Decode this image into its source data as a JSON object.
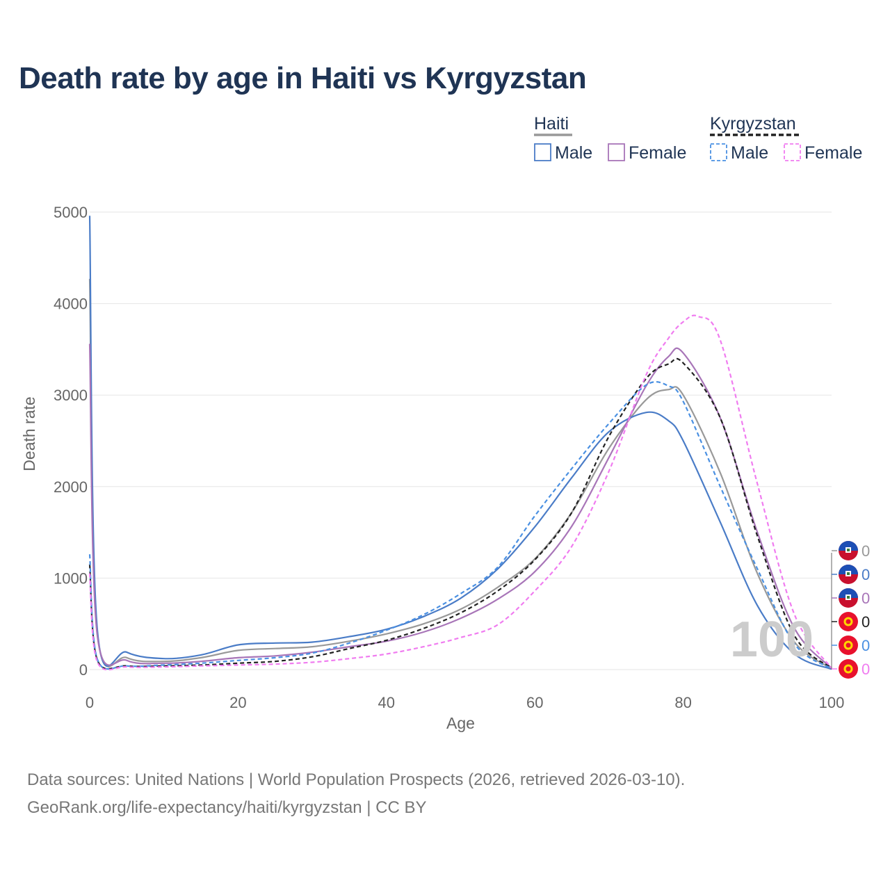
{
  "title": "Death rate by age in Haiti vs Kyrgyzstan",
  "source_line1": "Data sources: United Nations | World Population Prospects (2026, retrieved 2026-03-10).",
  "source_line2": "GeoRank.org/life-expectancy/haiti/kyrgyzstan | CC BY",
  "chart_data": {
    "type": "line",
    "title": "Death rate by age in Haiti vs Kyrgyzstan",
    "xlabel": "Age",
    "ylabel": "Death rate",
    "xlim": [
      0,
      100
    ],
    "ylim": [
      0,
      5000
    ],
    "x_ticks": [
      0,
      20,
      40,
      60,
      80,
      100
    ],
    "y_ticks": [
      0,
      1000,
      2000,
      3000,
      4000,
      5000
    ],
    "watermark": "100",
    "legend": {
      "groups": [
        {
          "name": "Haiti",
          "style": "solid",
          "color": "#999999",
          "items": [
            {
              "label": "Male",
              "color": "#4a7cc7"
            },
            {
              "label": "Female",
              "color": "#a875b8"
            }
          ]
        },
        {
          "name": "Kyrgyzstan",
          "style": "dashed",
          "color": "#222222",
          "items": [
            {
              "label": "Male",
              "color": "#4a90e2"
            },
            {
              "label": "Female",
              "color": "#f07cf0"
            }
          ]
        }
      ]
    },
    "series": [
      {
        "name": "Haiti Total",
        "country": "Haiti",
        "color": "#999999",
        "dash": false,
        "end_label": "0",
        "x": [
          0,
          1,
          5,
          10,
          15,
          20,
          25,
          30,
          35,
          40,
          45,
          50,
          55,
          60,
          65,
          70,
          75,
          78,
          80,
          85,
          90,
          95,
          100
        ],
        "y": [
          4270,
          420,
          130,
          90,
          130,
          210,
          230,
          250,
          310,
          390,
          500,
          660,
          900,
          1210,
          1720,
          2420,
          2950,
          3060,
          3000,
          2150,
          1050,
          300,
          10
        ]
      },
      {
        "name": "Haiti Male",
        "country": "Haiti",
        "color": "#4a7cc7",
        "dash": false,
        "end_label": "0",
        "x": [
          0,
          1,
          5,
          10,
          15,
          20,
          25,
          30,
          35,
          40,
          45,
          50,
          55,
          60,
          65,
          70,
          75,
          78,
          80,
          85,
          90,
          95,
          100
        ],
        "y": [
          4960,
          460,
          190,
          120,
          160,
          270,
          290,
          300,
          360,
          440,
          580,
          780,
          1100,
          1560,
          2100,
          2600,
          2810,
          2720,
          2500,
          1610,
          700,
          170,
          5
        ]
      },
      {
        "name": "Haiti Female",
        "country": "Haiti",
        "color": "#a875b8",
        "dash": false,
        "end_label": "0",
        "x": [
          0,
          1,
          5,
          10,
          15,
          20,
          25,
          30,
          35,
          40,
          45,
          50,
          55,
          60,
          65,
          70,
          75,
          78,
          80,
          85,
          90,
          95,
          100
        ],
        "y": [
          3560,
          390,
          100,
          70,
          90,
          130,
          150,
          190,
          250,
          310,
          410,
          560,
          770,
          1070,
          1570,
          2320,
          3100,
          3420,
          3460,
          2750,
          1500,
          450,
          15
        ]
      },
      {
        "name": "Kyrgyzstan Total",
        "country": "Kyrgyzstan",
        "color": "#222222",
        "dash": true,
        "end_label": "0",
        "x": [
          0,
          1,
          5,
          10,
          15,
          20,
          25,
          30,
          35,
          40,
          45,
          50,
          55,
          60,
          65,
          70,
          75,
          78,
          80,
          85,
          90,
          95,
          100
        ],
        "y": [
          1150,
          110,
          40,
          40,
          50,
          70,
          90,
          140,
          230,
          320,
          450,
          620,
          860,
          1200,
          1720,
          2550,
          3180,
          3340,
          3350,
          2750,
          1460,
          370,
          15
        ]
      },
      {
        "name": "Kyrgyzstan Male",
        "country": "Kyrgyzstan",
        "color": "#4a90e2",
        "dash": true,
        "end_label": "0",
        "x": [
          0,
          1,
          5,
          10,
          15,
          20,
          25,
          30,
          35,
          40,
          45,
          50,
          55,
          60,
          65,
          70,
          75,
          78,
          80,
          85,
          90,
          95,
          100
        ],
        "y": [
          1260,
          120,
          40,
          50,
          70,
          100,
          130,
          180,
          290,
          430,
          600,
          830,
          1120,
          1680,
          2200,
          2690,
          3110,
          3100,
          2930,
          2000,
          1100,
          280,
          10
        ]
      },
      {
        "name": "Kyrgyzstan Female",
        "country": "Kyrgyzstan",
        "color": "#f07cf0",
        "dash": true,
        "end_label": "0",
        "x": [
          0,
          1,
          5,
          10,
          15,
          20,
          25,
          30,
          35,
          40,
          45,
          50,
          55,
          60,
          65,
          70,
          75,
          78,
          80,
          82,
          85,
          90,
          95,
          100
        ],
        "y": [
          1050,
          90,
          30,
          30,
          40,
          50,
          60,
          80,
          120,
          170,
          250,
          350,
          490,
          860,
          1350,
          2170,
          3220,
          3620,
          3800,
          3860,
          3600,
          2030,
          600,
          15
        ]
      }
    ]
  }
}
